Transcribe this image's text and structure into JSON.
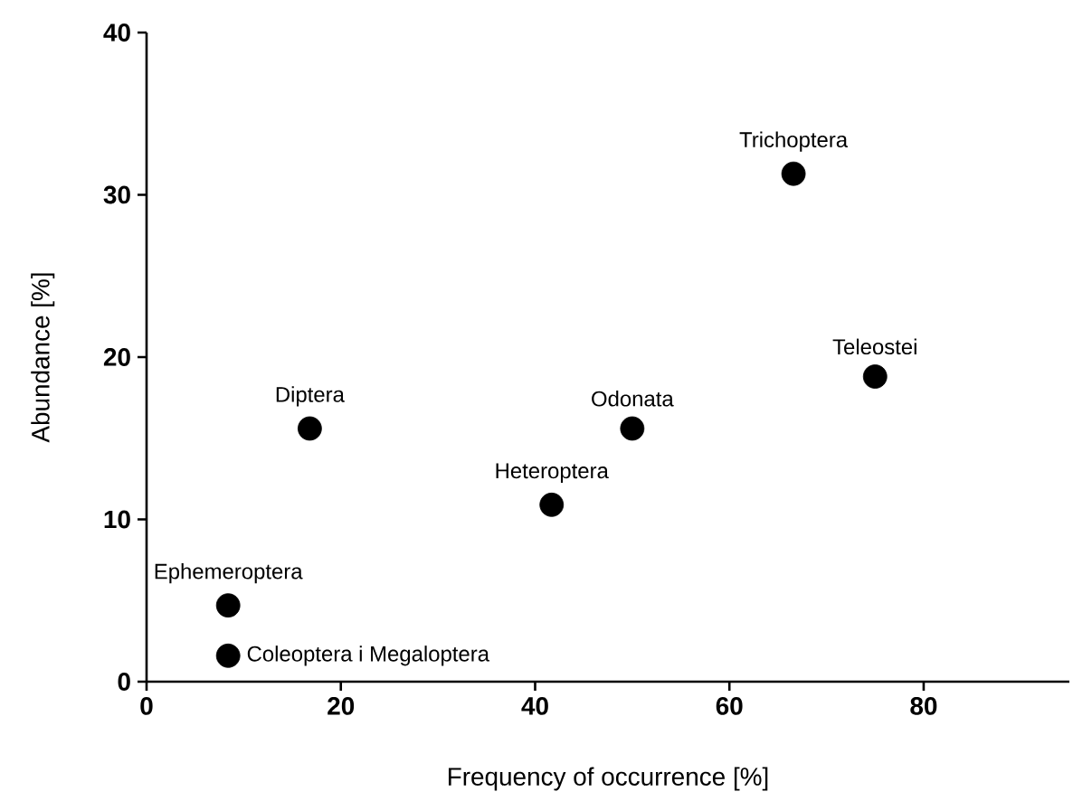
{
  "chart_data": {
    "type": "scatter",
    "xlabel": "Frequency of occurrence [%]",
    "ylabel": "Abundance [%]",
    "xlim": [
      0,
      95
    ],
    "ylim": [
      0,
      40
    ],
    "xticks": [
      0,
      20,
      40,
      60,
      80
    ],
    "yticks": [
      0,
      10,
      20,
      30,
      40
    ],
    "grid": false,
    "series": [
      {
        "color": "#000000",
        "x": [
          8.4,
          8.4,
          16.8,
          41.7,
          50,
          66.6,
          75
        ],
        "values": [
          4.7,
          1.6,
          15.6,
          10.9,
          15.6,
          31.3,
          18.8
        ]
      }
    ],
    "annotations": [
      {
        "text": "Ephemeroptera",
        "x": 8.4,
        "y": 4.7
      },
      {
        "text": "Coleoptera i Megaloptera",
        "x": 8.4,
        "y": 1.6
      },
      {
        "text": "Diptera",
        "x": 16.8,
        "y": 15.6
      },
      {
        "text": "Heteroptera",
        "x": 41.7,
        "y": 10.9
      },
      {
        "text": "Odonata",
        "x": 50,
        "y": 15.6
      },
      {
        "text": "Trichoptera",
        "x": 66.6,
        "y": 31.3
      },
      {
        "text": "Teleostei",
        "x": 75,
        "y": 18.8
      }
    ]
  }
}
